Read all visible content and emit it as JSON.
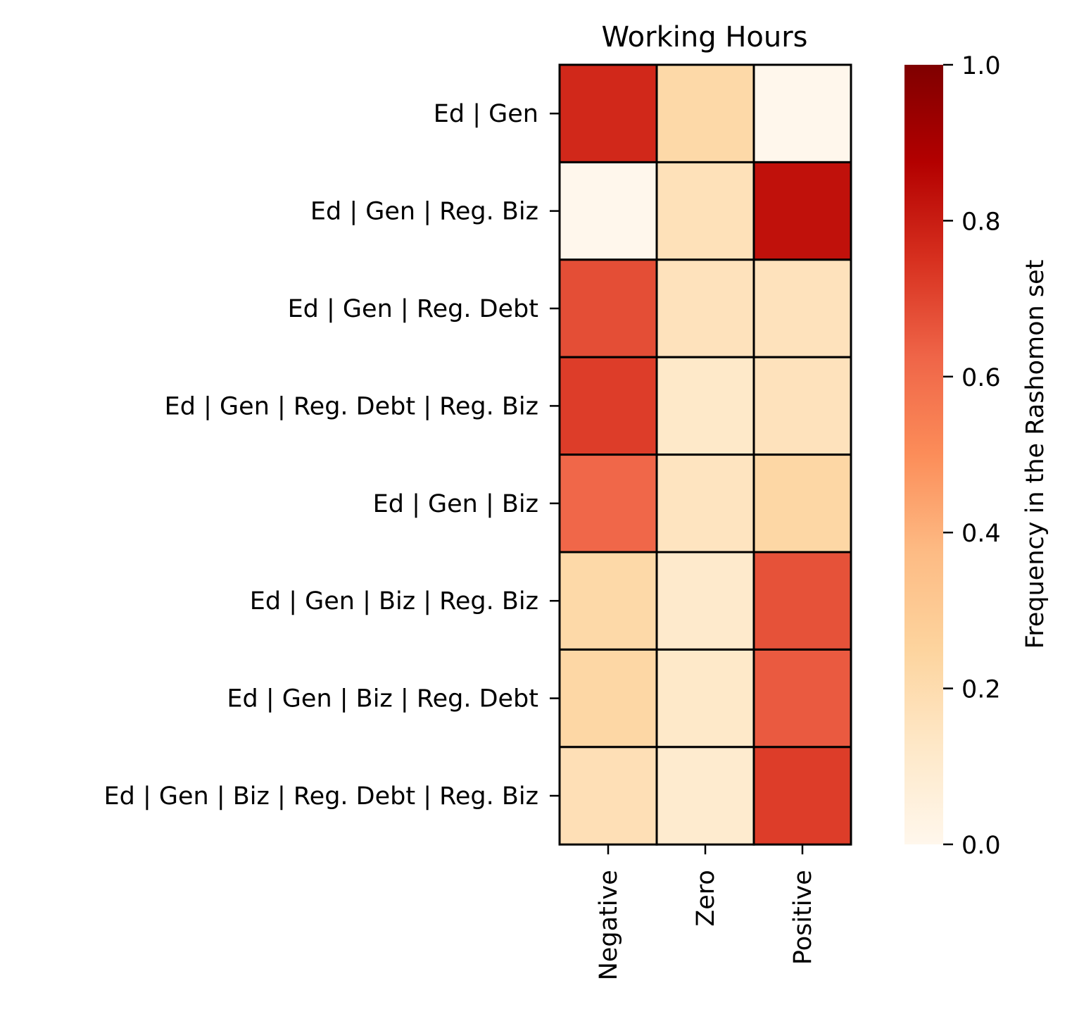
{
  "chart_data": {
    "type": "heatmap",
    "title": "Working Hours",
    "rows": [
      "Ed | Gen",
      "Ed | Gen | Reg. Biz",
      "Ed | Gen | Reg. Debt",
      "Ed | Gen | Reg. Debt | Reg. Biz",
      "Ed | Gen | Biz",
      "Ed | Gen | Biz | Reg. Biz",
      "Ed | Gen | Biz | Reg. Debt",
      "Ed | Gen | Biz | Reg. Debt | Reg. Biz"
    ],
    "columns": [
      "Negative",
      "Zero",
      "Positive"
    ],
    "values": [
      [
        0.77,
        0.22,
        0.0
      ],
      [
        0.0,
        0.17,
        0.83
      ],
      [
        0.68,
        0.16,
        0.16
      ],
      [
        0.72,
        0.12,
        0.16
      ],
      [
        0.62,
        0.15,
        0.23
      ],
      [
        0.22,
        0.11,
        0.67
      ],
      [
        0.23,
        0.12,
        0.65
      ],
      [
        0.18,
        0.1,
        0.72
      ]
    ],
    "colorbar": {
      "label": "Frequency in the Rashomon set",
      "range": [
        0,
        1
      ],
      "ticks": [
        "0.0",
        "0.2",
        "0.4",
        "0.6",
        "0.8",
        "1.0"
      ],
      "colormap": "OrRd"
    },
    "cell_border_color": "#000000"
  }
}
